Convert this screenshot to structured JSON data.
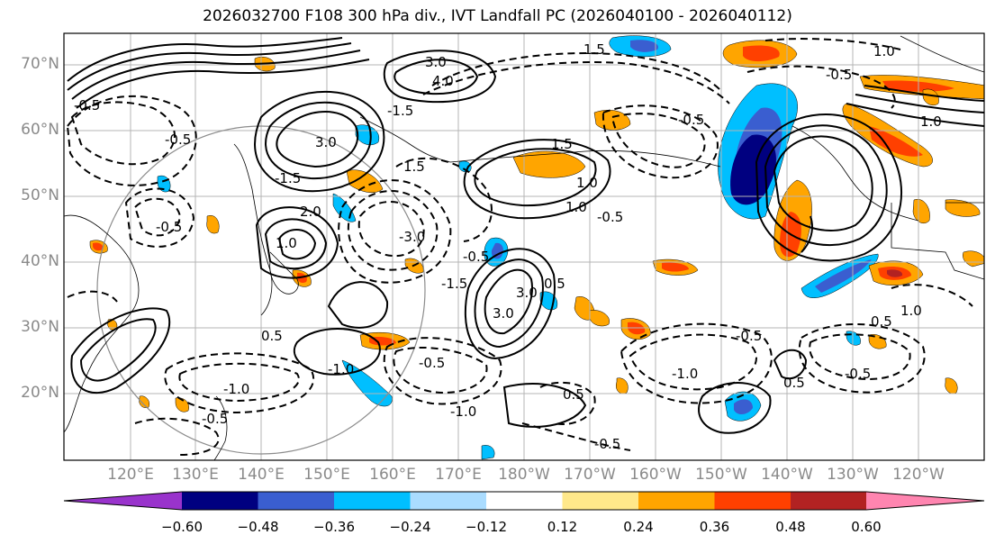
{
  "title": "2026032700 F108 300 hPa div., IVT Landfall PC (2026040100 - 2026040112)",
  "lat_labels": [
    "70°N",
    "60°N",
    "50°N",
    "40°N",
    "30°N",
    "20°N"
  ],
  "lon_labels": [
    "120°E",
    "130°E",
    "140°E",
    "150°E",
    "160°E",
    "170°E",
    "180°W",
    "170°W",
    "160°W",
    "150°W",
    "140°W",
    "130°W",
    "120°W"
  ],
  "contour_labels": [
    "-0.5",
    "-0.5",
    "-1.0",
    "-1.5",
    "-0.5",
    "-0.5",
    "-1.0",
    "-0.5",
    "-0.5",
    "-0.5",
    "-0.5",
    "-1.0",
    "-0.5",
    "1.5",
    "1.5",
    "1.0",
    "1.0",
    "3.0",
    "3.0",
    "3.0",
    "4.0",
    "2.0",
    "0.5",
    "1.0",
    "1.0",
    "1.5",
    "3.0",
    "-1.5",
    "1.0",
    "-3.0",
    "1.0",
    "0.5",
    "-1.5",
    "0.5",
    "-0.5",
    "-0.5",
    "-1.0",
    "-0.5",
    "0.5",
    "0.5"
  ],
  "colorbar": {
    "colors": [
      "#9933cc",
      "#000080",
      "#3a5ed0",
      "#00bfff",
      "#aadcff",
      "#ffffff",
      "#ffe88a",
      "#ffa500",
      "#ff4000",
      "#b22222",
      "#ff85b0"
    ],
    "tick_labels": [
      "−0.60",
      "−0.48",
      "−0.36",
      "−0.24",
      "−0.12",
      "0.12",
      "0.24",
      "0.36",
      "0.48",
      "0.60"
    ]
  },
  "colors": {
    "grid": "#b4b4b4",
    "coast": "#000000",
    "axis_label": "#8a8a8a"
  }
}
